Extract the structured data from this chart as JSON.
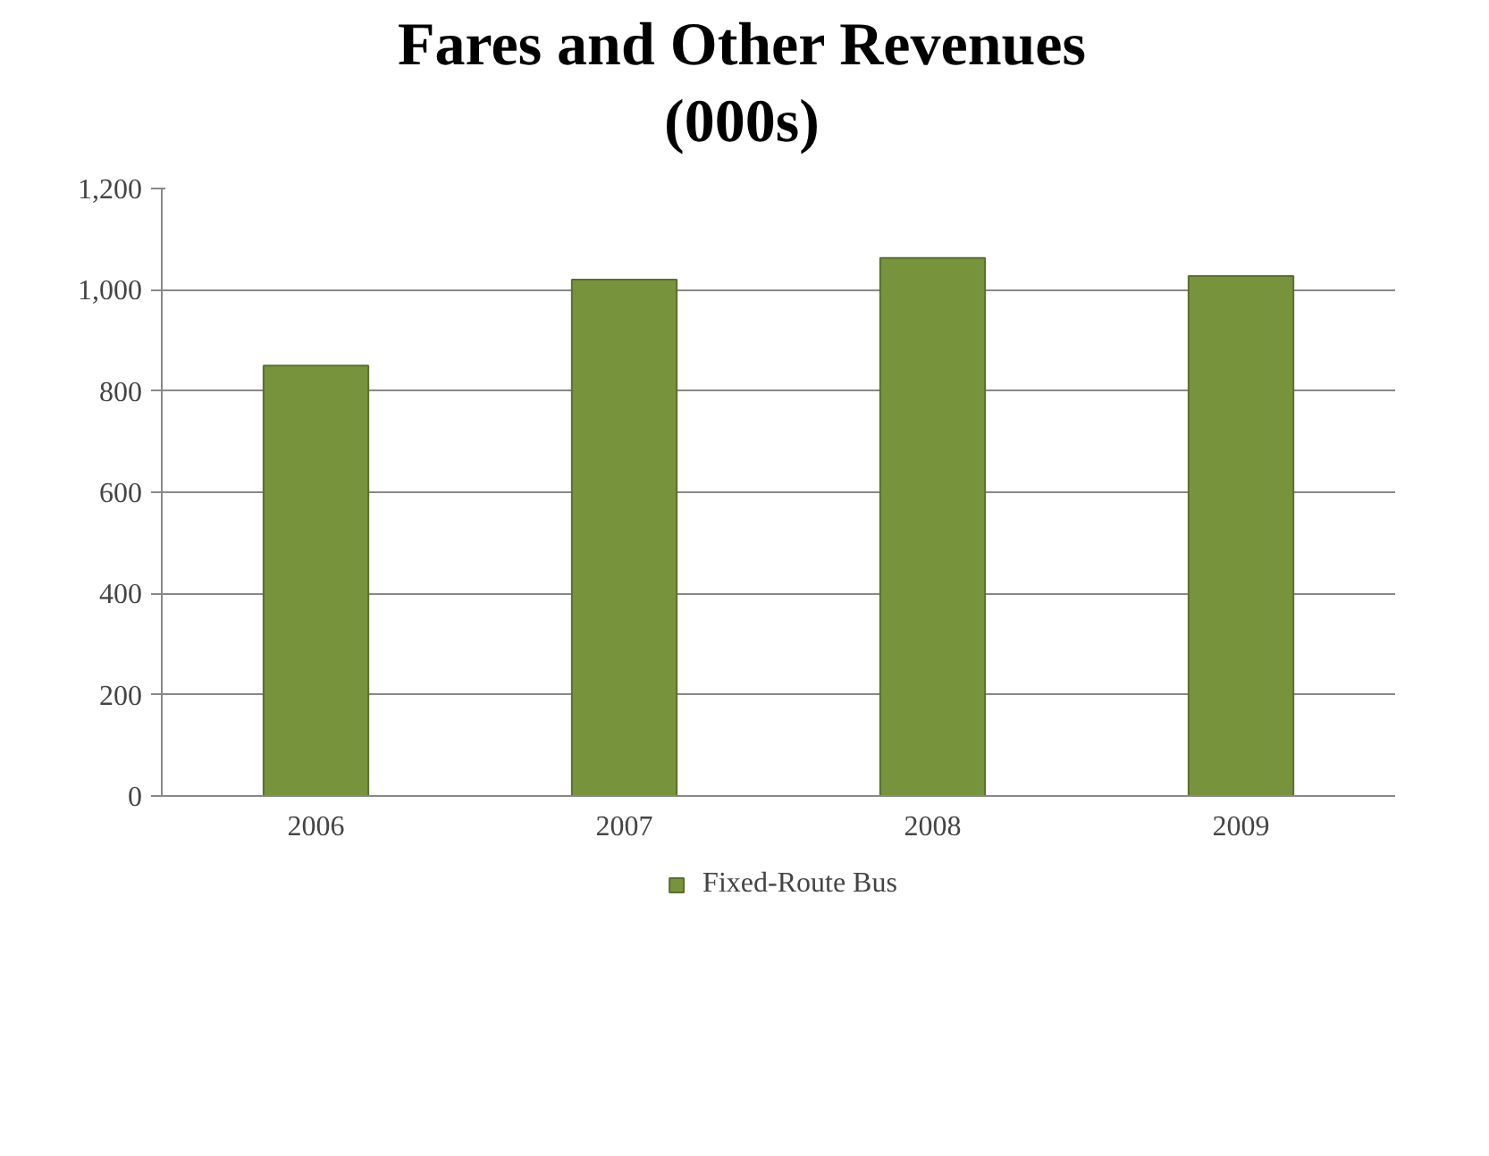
{
  "chart_data": {
    "type": "bar",
    "title": "Fares and Other Revenues\n(000s)",
    "categories": [
      "2006",
      "2007",
      "2008",
      "2009"
    ],
    "series": [
      {
        "name": "Fixed-Route Bus",
        "color": "#77933c",
        "values": [
          850,
          1020,
          1063,
          1027
        ]
      }
    ],
    "ylim": [
      0,
      1200
    ],
    "yticks": [
      {
        "value": 0,
        "label": "0"
      },
      {
        "value": 200,
        "label": "200"
      },
      {
        "value": 400,
        "label": "400"
      },
      {
        "value": 600,
        "label": "600"
      },
      {
        "value": 800,
        "label": "800"
      },
      {
        "value": 1000,
        "label": "1,000"
      },
      {
        "value": 1200,
        "label": "1,200"
      }
    ],
    "grid": "y",
    "legend": "bottom"
  }
}
